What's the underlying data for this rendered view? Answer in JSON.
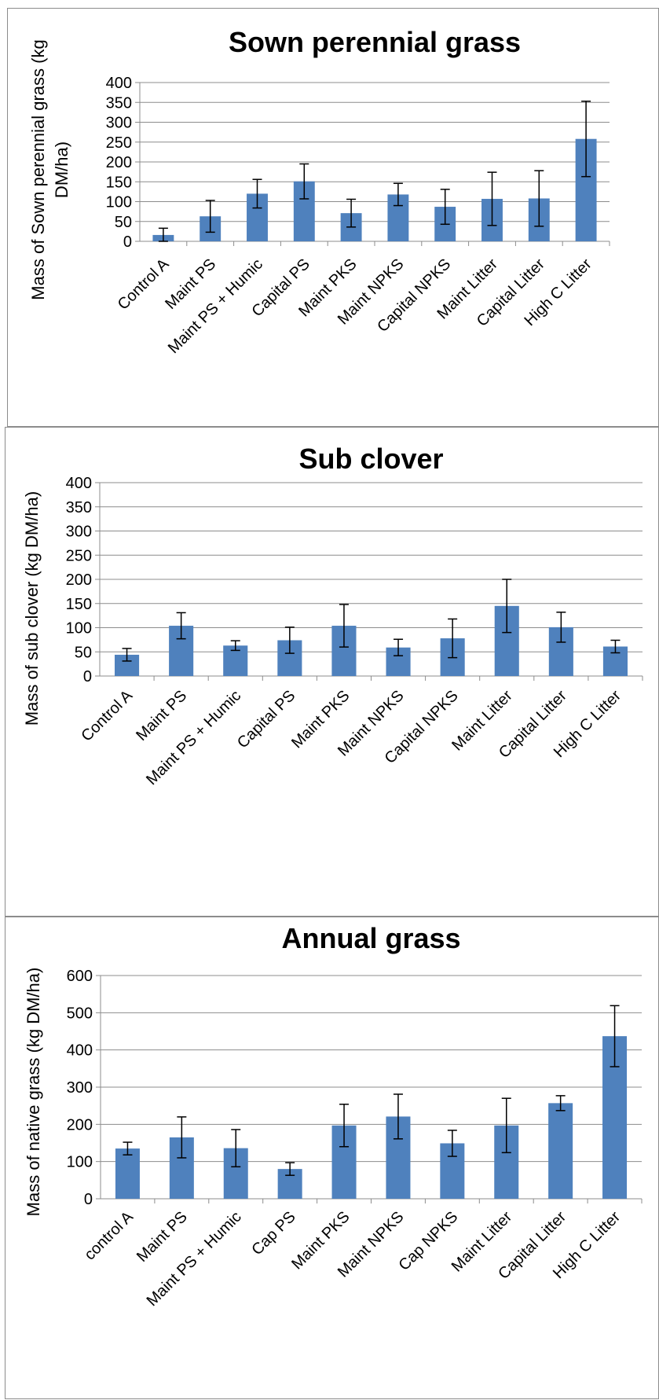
{
  "chart_data": [
    {
      "type": "bar",
      "title": "Sown perennial grass",
      "ylabel_lines": [
        "Mass of Sown perennial grass (kg",
        "DM/ha)"
      ],
      "xlabel": "",
      "ylim": [
        0,
        400
      ],
      "yticks": [
        0,
        50,
        100,
        150,
        200,
        250,
        300,
        350,
        400
      ],
      "grid": true,
      "legend": "none",
      "bar_color": "#4f81bd",
      "categories": [
        "Control A",
        "Maint PS",
        "Maint PS + Humic",
        "Capital PS",
        "Maint PKS",
        "Maint NPKS",
        "Capital NPKS",
        "Maint Litter",
        "Capital Litter",
        "High C Litter"
      ],
      "values": [
        16,
        63,
        120,
        151,
        71,
        118,
        87,
        107,
        108,
        258
      ],
      "errors": [
        17,
        40,
        36,
        44,
        35,
        28,
        44,
        67,
        70,
        95
      ]
    },
    {
      "type": "bar",
      "title": "Sub clover",
      "ylabel_lines": [
        "Mass of sub clover (kg DM/ha)"
      ],
      "xlabel": "",
      "ylim": [
        0,
        400
      ],
      "yticks": [
        0,
        50,
        100,
        150,
        200,
        250,
        300,
        350,
        400
      ],
      "grid": true,
      "legend": "none",
      "bar_color": "#4f81bd",
      "categories": [
        "Control A",
        "Maint PS",
        "Maint PS + Humic",
        "Capital PS",
        "Maint PKS",
        "Maint NPKS",
        "Capital NPKS",
        "Maint Litter",
        "Capital Litter",
        "High C Litter"
      ],
      "values": [
        44,
        104,
        63,
        74,
        104,
        59,
        78,
        145,
        101,
        61
      ],
      "errors": [
        13,
        27,
        10,
        27,
        44,
        17,
        40,
        55,
        31,
        13
      ]
    },
    {
      "type": "bar",
      "title": "Annual grass",
      "ylabel_lines": [
        "Mass of native  grass  (kg DM/ha)"
      ],
      "xlabel": "",
      "ylim": [
        0,
        600
      ],
      "yticks": [
        0,
        100,
        200,
        300,
        400,
        500,
        600
      ],
      "grid": true,
      "legend": "none",
      "bar_color": "#4f81bd",
      "categories": [
        "control A",
        "Maint PS",
        "Maint PS + Humic",
        "Cap PS",
        "Maint PKS",
        "Maint NPKS",
        "Cap NPKS",
        "Maint Litter",
        "Capital Litter",
        "High C Litter"
      ],
      "values": [
        135,
        165,
        136,
        80,
        197,
        221,
        149,
        197,
        257,
        437
      ],
      "errors": [
        17,
        55,
        50,
        17,
        57,
        60,
        35,
        73,
        20,
        82
      ]
    }
  ]
}
